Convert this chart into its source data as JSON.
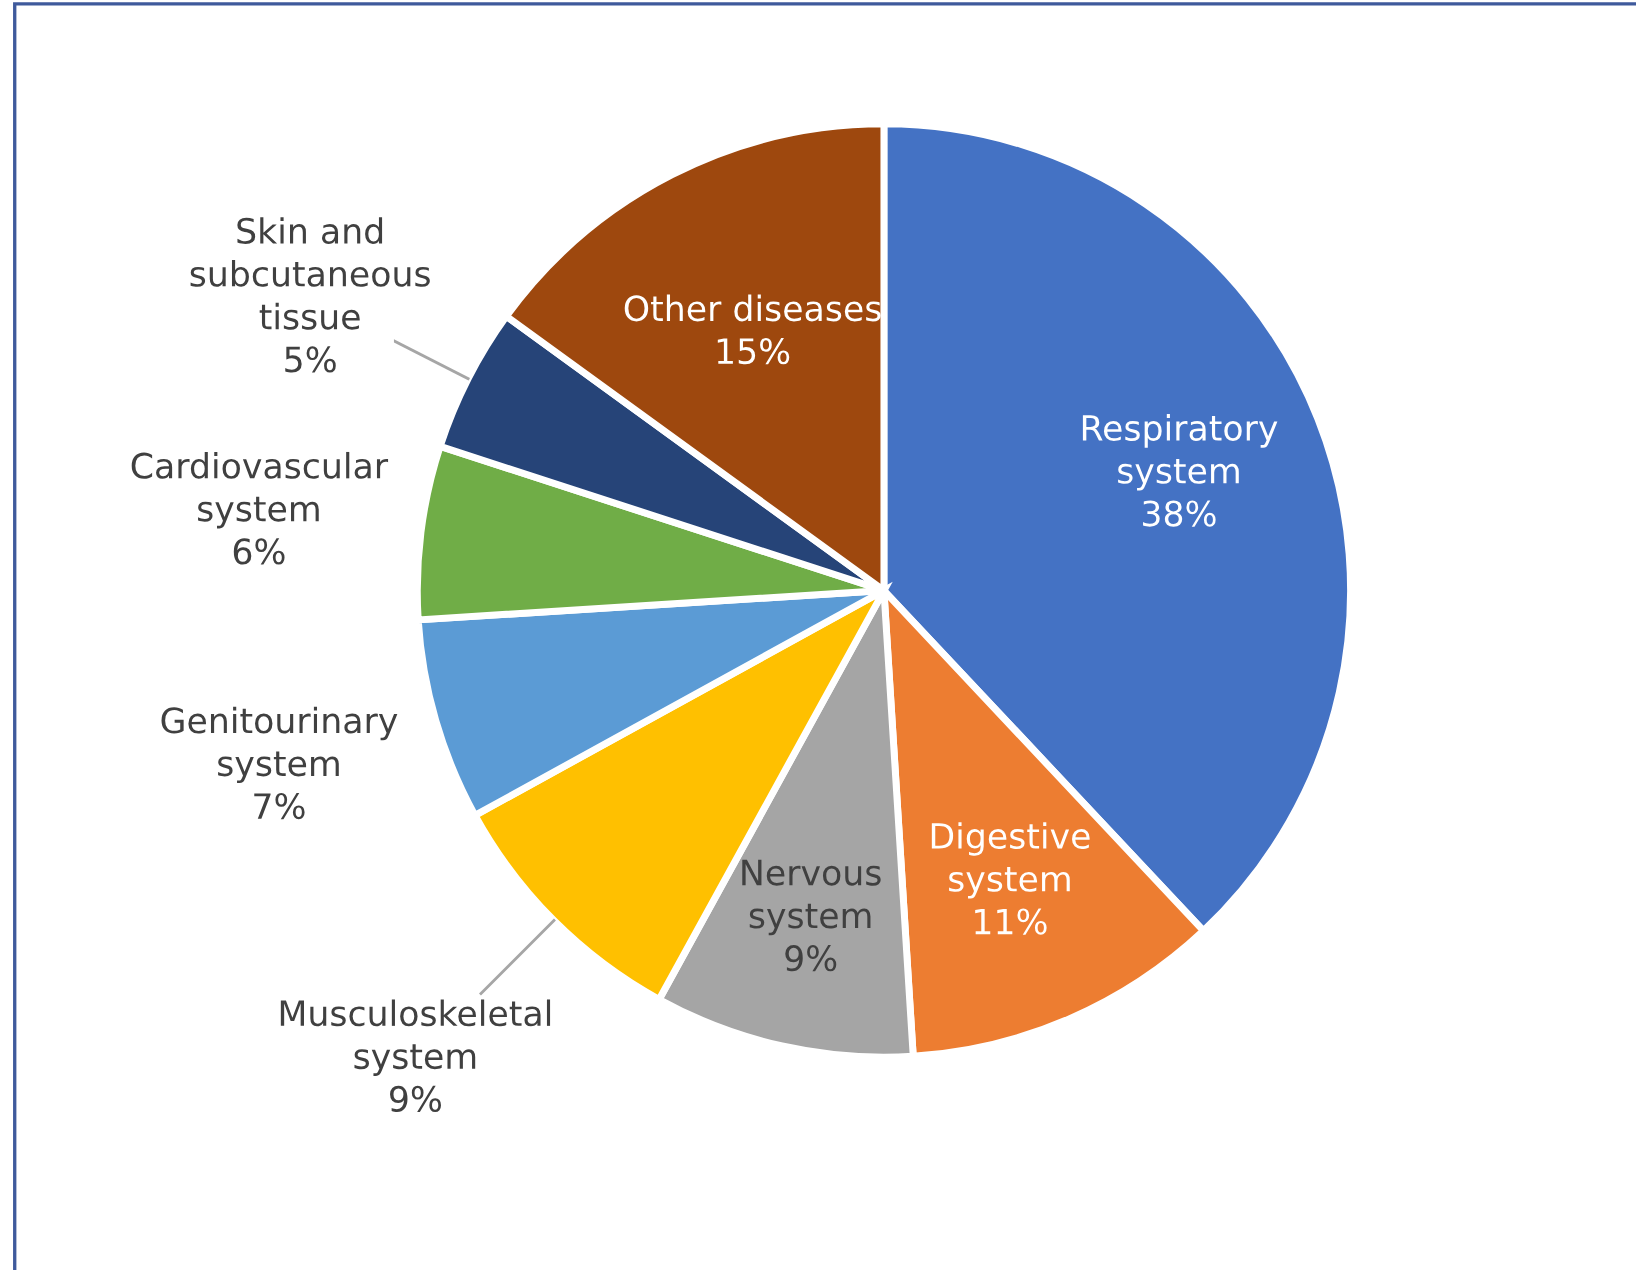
{
  "chart_data": {
    "type": "pie",
    "categories": [
      "Respiratory\nsystem",
      "Digestive\nsystem",
      "Nervous\nsystem",
      "Musculoskeletal\nsystem",
      "Genitourinary\nsystem",
      "Cardiovascular\nsystem",
      "Skin and\nsubcutaneous\ntissue",
      "Other diseases"
    ],
    "values": [
      38,
      11,
      9,
      9,
      7,
      6,
      5,
      15
    ],
    "value_labels": [
      "38%",
      "11%",
      "9%",
      "9%",
      "7%",
      "6%",
      "5%",
      "15%"
    ],
    "colors": [
      "#4472c4",
      "#ed7d31",
      "#a5a5a5",
      "#ffc000",
      "#5b9bd5",
      "#70ad47",
      "#264478",
      "#9e480e"
    ],
    "legend": false
  }
}
